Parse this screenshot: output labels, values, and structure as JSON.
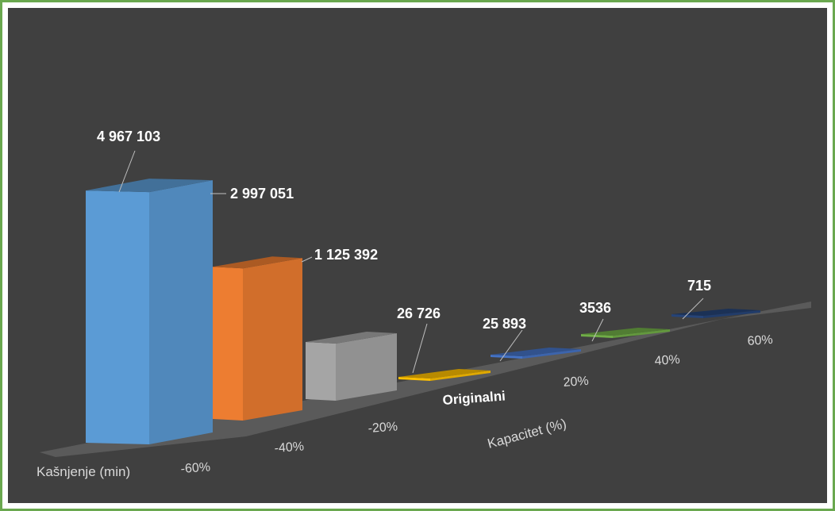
{
  "chart_data": {
    "type": "bar",
    "subtype": "3d-column",
    "title": "",
    "categories": [
      "-60%",
      "-40%",
      "-20%",
      "Originalni",
      "20%",
      "40%",
      "60%"
    ],
    "values": [
      4967103,
      2997051,
      1125392,
      26726,
      25893,
      3536,
      715
    ],
    "value_labels": [
      "4 967 103",
      "2 997 051",
      "1 125 392",
      "26 726",
      "25 893",
      "3536",
      "715"
    ],
    "colors": [
      "#5b9bd5",
      "#ed7d31",
      "#a5a5a5",
      "#ffc000",
      "#4472c4",
      "#70ad47",
      "#264478"
    ],
    "xlabel": "Kapacitet (%)",
    "ylabel": "Kašnjenje (min)",
    "ylim": [
      0,
      5000000
    ],
    "grid": false,
    "legend": "none"
  },
  "theme": {
    "background": "#404040",
    "frame": "#6aa84f",
    "text": "#ffffff",
    "muted": "#d9d9d9"
  }
}
